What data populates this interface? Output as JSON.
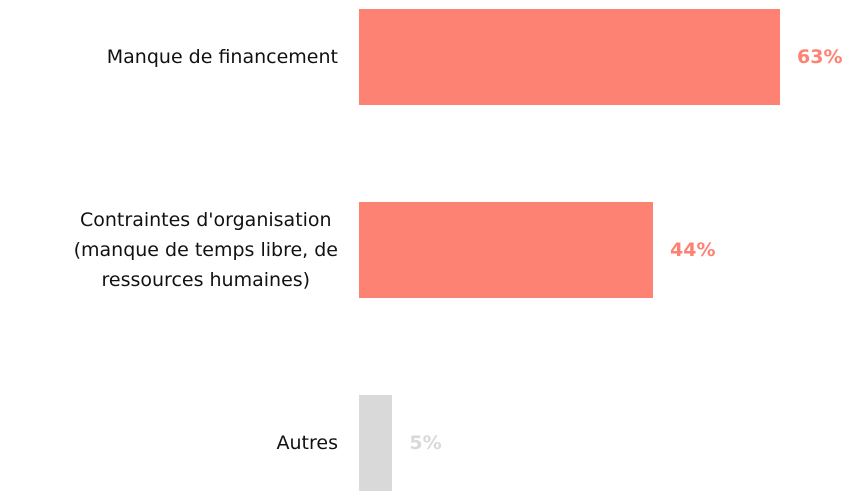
{
  "chart_data": {
    "type": "barh",
    "categories": [
      "Manque de financement",
      "Contraintes d'organisation\n(manque de temps libre, de\nressources humaines)",
      "Autres"
    ],
    "values": [
      63,
      44,
      5
    ],
    "value_labels": [
      "63%",
      "44%",
      "5%"
    ],
    "colors": [
      "#fd8273",
      "#fd8273",
      "#d9d9d9"
    ]
  }
}
